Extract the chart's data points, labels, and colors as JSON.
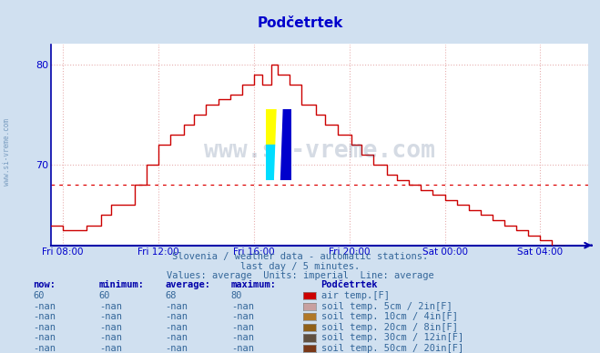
{
  "title": "Podčetrtek",
  "bg_color": "#d0e0f0",
  "plot_bg_color": "#ffffff",
  "line_color": "#cc0000",
  "avg_line_color": "#dd0000",
  "avg_value": 68,
  "ylim_min": 62,
  "ylim_max": 82,
  "yticks": [
    70,
    80
  ],
  "ylabel_color": "#0000cc",
  "xlabel_color": "#0000cc",
  "grid_color": "#e8b0b0",
  "title_color": "#0000cc",
  "watermark_text": "www.si-vreme.com",
  "watermark_color": "#1a3a6a",
  "watermark_alpha": 0.18,
  "subtitle1": "Slovenia / weather data - automatic stations.",
  "subtitle2": "last day / 5 minutes.",
  "subtitle3": "Values: average  Units: imperial  Line: average",
  "subtitle_color": "#336699",
  "xtick_labels": [
    "Fri 08:00",
    "Fri 12:00",
    "Fri 16:00",
    "Fri 20:00",
    "Sat 00:00",
    "Sat 04:00"
  ],
  "legend_rows": [
    {
      "now": "60",
      "min": "60",
      "avg": "68",
      "max": "80",
      "color": "#cc0000",
      "label": "air temp.[F]"
    },
    {
      "now": "-nan",
      "min": "-nan",
      "avg": "-nan",
      "max": "-nan",
      "color": "#c8a0a0",
      "label": "soil temp. 5cm / 2in[F]"
    },
    {
      "now": "-nan",
      "min": "-nan",
      "avg": "-nan",
      "max": "-nan",
      "color": "#b07828",
      "label": "soil temp. 10cm / 4in[F]"
    },
    {
      "now": "-nan",
      "min": "-nan",
      "avg": "-nan",
      "max": "-nan",
      "color": "#906018",
      "label": "soil temp. 20cm / 8in[F]"
    },
    {
      "now": "-nan",
      "min": "-nan",
      "avg": "-nan",
      "max": "-nan",
      "color": "#605040",
      "label": "soil temp. 30cm / 12in[F]"
    },
    {
      "now": "-nan",
      "min": "-nan",
      "avg": "-nan",
      "max": "-nan",
      "color": "#7a3818",
      "label": "soil temp. 50cm / 20in[F]"
    }
  ],
  "legend_title": "Podčetrtek",
  "col_headers": [
    "now:",
    "minimum:",
    "average:",
    "maximum:"
  ]
}
